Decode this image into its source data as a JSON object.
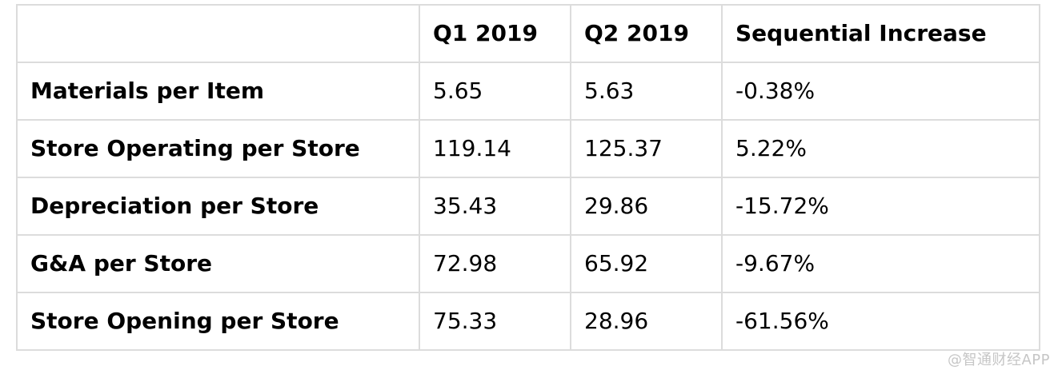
{
  "chart_data": {
    "type": "table",
    "title": "",
    "columns": [
      "",
      "Q1 2019",
      "Q2 2019",
      "Sequential Increase"
    ],
    "rows": [
      [
        "Materials per Item",
        "5.65",
        "5.63",
        "-0.38%"
      ],
      [
        "Store Operating per Store",
        "119.14",
        "125.37",
        "5.22%"
      ],
      [
        "Depreciation per Store",
        "35.43",
        "29.86",
        "-15.72%"
      ],
      [
        "G&A per Store",
        "72.98",
        "65.92",
        "-9.67%"
      ],
      [
        "Store Opening per Store",
        "75.33",
        "28.96",
        "-61.56%"
      ]
    ],
    "layout": {
      "header_row_bold": true,
      "first_column_bold": true,
      "grid": "all-borders"
    }
  },
  "watermark": {
    "text": "@智通财经APP"
  },
  "colors": {
    "background": "#ffffff",
    "border": "#dcdcdc",
    "text": "#000000",
    "watermark": "#c6c6c6"
  }
}
